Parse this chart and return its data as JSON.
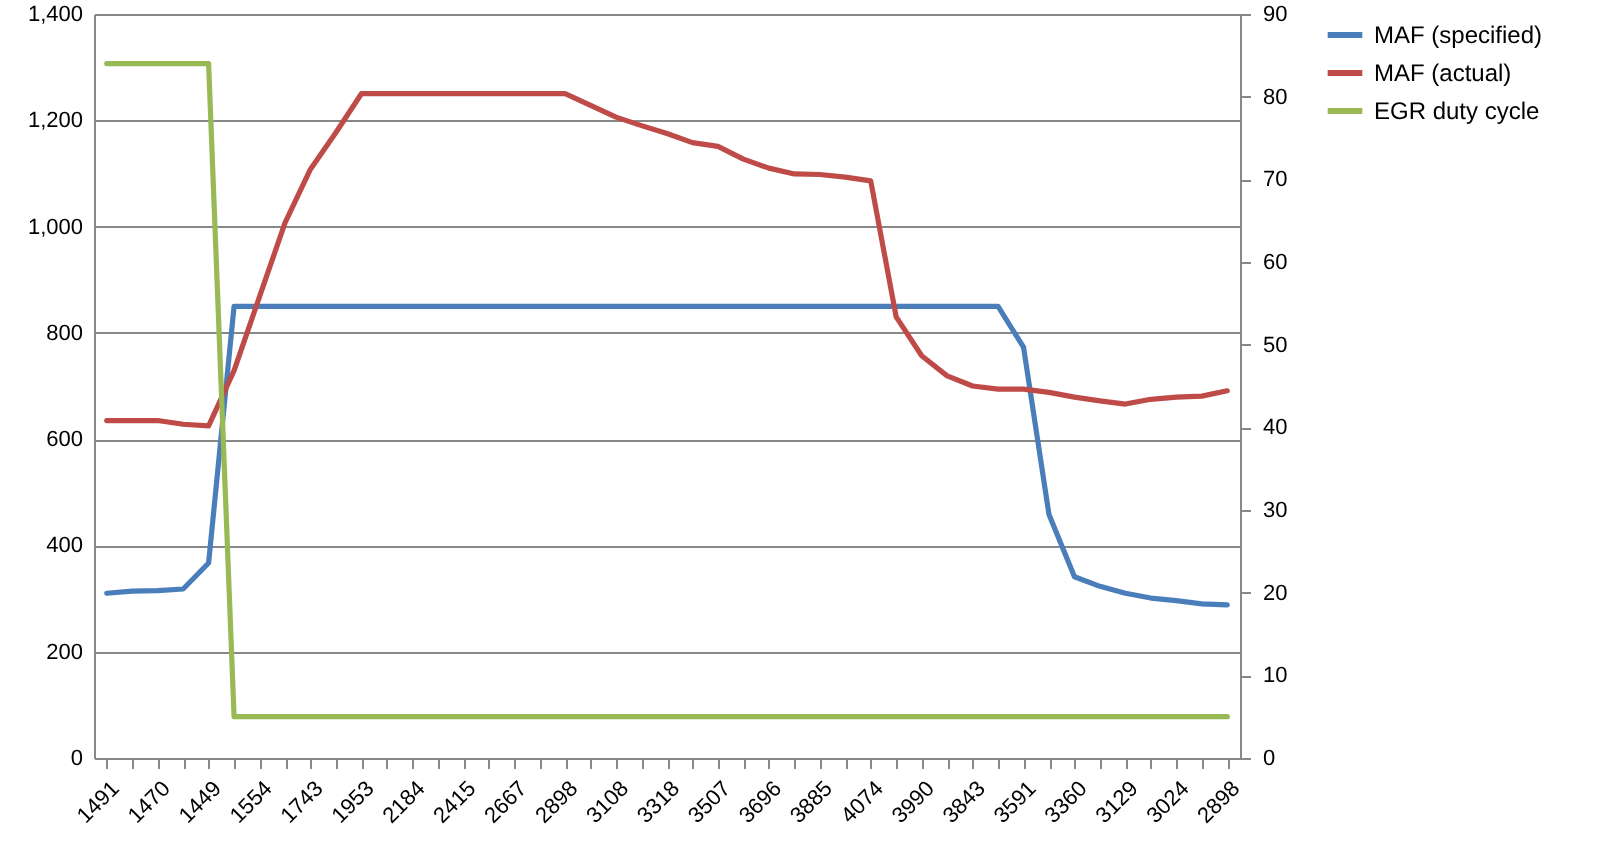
{
  "chart_data": {
    "type": "line",
    "categories": [
      "1491",
      null,
      "1470",
      null,
      "1449",
      null,
      "1554",
      null,
      "1743",
      null,
      "1953",
      null,
      "2184",
      null,
      "2415",
      null,
      "2667",
      null,
      "2898",
      null,
      "3108",
      null,
      "3318",
      null,
      "3507",
      null,
      "3696",
      null,
      "3885",
      null,
      "4074",
      null,
      "3990",
      null,
      "3843",
      null,
      "3591",
      null,
      "3360",
      null,
      "3129",
      null,
      "3024",
      null,
      "2898"
    ],
    "series": [
      {
        "name": "MAF (specified)",
        "color": "#4a7ebb",
        "values": [
          310,
          314,
          315,
          318,
          367,
          850,
          850,
          850,
          850,
          850,
          850,
          850,
          850,
          850,
          850,
          850,
          850,
          850,
          850,
          850,
          850,
          850,
          850,
          850,
          850,
          850,
          850,
          850,
          850,
          850,
          850,
          850,
          850,
          850,
          850,
          850,
          773,
          458,
          341,
          323,
          310,
          301,
          296,
          290,
          288
        ]
      },
      {
        "name": "MAF (actual)",
        "color": "#be4b48",
        "values": [
          635,
          635,
          635,
          628,
          625,
          729,
          868,
          1007,
          1108,
          1177,
          1250,
          1250,
          1250,
          1250,
          1250,
          1250,
          1250,
          1250,
          1250,
          1228,
          1206,
          1190,
          1175,
          1158,
          1151,
          1127,
          1110,
          1099,
          1098,
          1093,
          1086,
          830,
          757,
          719,
          700,
          694,
          694,
          688,
          679,
          672,
          666,
          675,
          679,
          681,
          691
        ]
      },
      {
        "name": "EGR duty cycle",
        "color": "#98b954",
        "axis": "y2",
        "values": [
          84,
          84,
          84,
          84,
          84,
          5,
          5,
          5,
          5,
          5,
          5,
          5,
          5,
          5,
          5,
          5,
          5,
          5,
          5,
          5,
          5,
          5,
          5,
          5,
          5,
          5,
          5,
          5,
          5,
          5,
          5,
          5,
          5,
          5,
          5,
          5,
          5,
          5,
          5,
          5,
          5,
          5,
          5,
          5,
          5
        ]
      }
    ],
    "ylim": [
      0,
      1400
    ],
    "yticks": [
      0,
      200,
      400,
      600,
      800,
      {
        "value": 1000,
        "label": "1,000"
      },
      {
        "value": 1200,
        "label": "1,200"
      },
      {
        "value": 1400,
        "label": "1,400"
      }
    ],
    "y2lim": [
      0,
      90
    ],
    "y2ticks": [
      0,
      10,
      20,
      30,
      40,
      50,
      60,
      70,
      80,
      90
    ],
    "grid": "y",
    "legend": "right",
    "marker": "none",
    "line_style": "solid"
  }
}
